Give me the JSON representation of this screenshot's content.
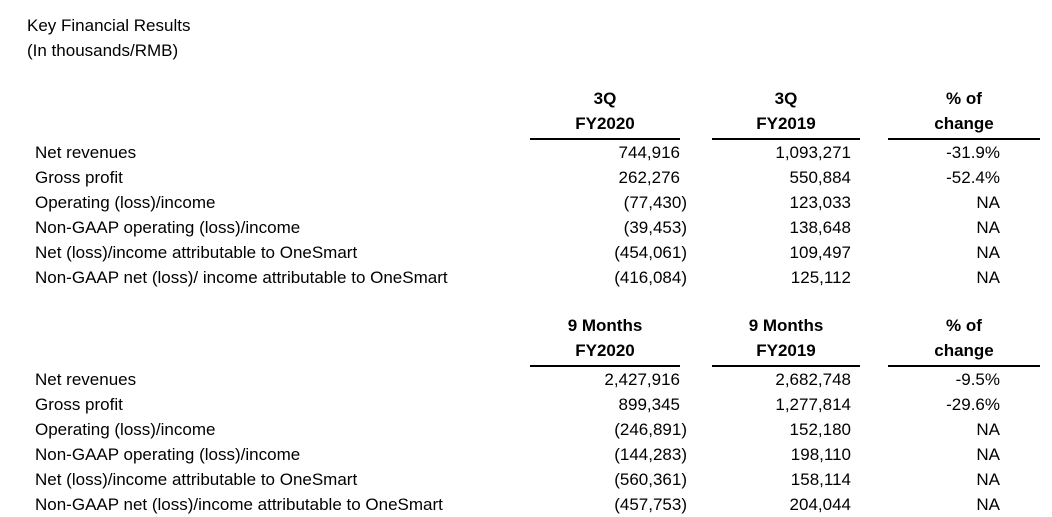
{
  "page": {
    "title": "Key Financial Results",
    "subtitle": "(In thousands/RMB)"
  },
  "colors": {
    "text": "#000000",
    "background": "#ffffff",
    "rule": "#000000"
  },
  "tables": [
    {
      "headers": [
        {
          "line1": "3Q",
          "line2": "FY2020"
        },
        {
          "line1": "3Q",
          "line2": "FY2019"
        },
        {
          "line1": "% of",
          "line2": "change"
        }
      ],
      "rows": [
        {
          "label": "Net revenues",
          "v1": "744,916",
          "v2": "1,093,271",
          "change": "-31.9%"
        },
        {
          "label": "Gross profit",
          "v1": "262,276",
          "v2": "550,884",
          "change": "-52.4%"
        },
        {
          "label": "Operating (loss)/income",
          "v1": "(77,430)",
          "v2": "123,033",
          "change": "NA"
        },
        {
          "label": "Non-GAAP operating (loss)/income",
          "v1": "(39,453)",
          "v2": "138,648",
          "change": "NA"
        },
        {
          "label": "Net (loss)/income attributable to OneSmart",
          "v1": "(454,061)",
          "v2": "109,497",
          "change": "NA"
        },
        {
          "label": "Non-GAAP net (loss)/ income attributable to OneSmart",
          "v1": "(416,084)",
          "v2": "125,112",
          "change": "NA"
        }
      ]
    },
    {
      "headers": [
        {
          "line1": "9 Months",
          "line2": "FY2020"
        },
        {
          "line1": "9 Months",
          "line2": "FY2019"
        },
        {
          "line1": "% of",
          "line2": "change"
        }
      ],
      "rows": [
        {
          "label": "Net revenues",
          "v1": "2,427,916",
          "v2": "2,682,748",
          "change": "-9.5%"
        },
        {
          "label": "Gross profit",
          "v1": "899,345",
          "v2": "1,277,814",
          "change": "-29.6%"
        },
        {
          "label": "Operating (loss)/income",
          "v1": "(246,891)",
          "v2": "152,180",
          "change": "NA"
        },
        {
          "label": "Non-GAAP operating (loss)/income",
          "v1": "(144,283)",
          "v2": "198,110",
          "change": "NA"
        },
        {
          "label": "Net (loss)/income attributable to OneSmart",
          "v1": "(560,361)",
          "v2": "158,114",
          "change": "NA"
        },
        {
          "label": "Non-GAAP net (loss)/income attributable to OneSmart",
          "v1": "(457,753)",
          "v2": "204,044",
          "change": "NA"
        }
      ]
    }
  ]
}
